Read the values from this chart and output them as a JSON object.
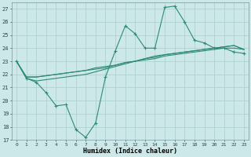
{
  "xlabel": "Humidex (Indice chaleur)",
  "ylabel": "",
  "x_values": [
    0,
    1,
    2,
    3,
    4,
    5,
    6,
    7,
    8,
    9,
    10,
    11,
    12,
    13,
    14,
    15,
    16,
    17,
    18,
    19,
    20,
    21,
    22,
    23
  ],
  "line1_y": [
    23.0,
    21.7,
    21.4,
    20.6,
    19.6,
    19.7,
    17.8,
    17.2,
    18.3,
    21.8,
    23.8,
    25.7,
    25.1,
    24.0,
    24.0,
    27.1,
    27.2,
    26.0,
    24.6,
    24.4,
    24.0,
    24.0,
    23.7,
    23.6
  ],
  "line2_y": [
    23.0,
    21.8,
    21.8,
    21.9,
    22.0,
    22.1,
    22.2,
    22.3,
    22.4,
    22.5,
    22.7,
    22.9,
    23.0,
    23.1,
    23.2,
    23.4,
    23.5,
    23.6,
    23.7,
    23.8,
    23.9,
    24.0,
    24.0,
    23.9
  ],
  "line3_y": [
    23.0,
    21.8,
    21.8,
    21.9,
    22.0,
    22.1,
    22.2,
    22.3,
    22.5,
    22.6,
    22.7,
    22.9,
    23.0,
    23.2,
    23.3,
    23.5,
    23.6,
    23.7,
    23.8,
    23.9,
    24.0,
    24.1,
    24.2,
    23.9
  ],
  "line4_y": [
    23.0,
    21.7,
    21.5,
    21.6,
    21.7,
    21.8,
    21.9,
    22.0,
    22.2,
    22.4,
    22.6,
    22.8,
    23.0,
    23.2,
    23.4,
    23.5,
    23.6,
    23.7,
    23.8,
    23.9,
    24.0,
    24.1,
    24.2,
    23.9
  ],
  "line_color": "#2e8b74",
  "bg_color": "#cce8e8",
  "grid_color": "#aacece",
  "ylim": [
    17,
    27.5
  ],
  "xlim": [
    -0.5,
    23.5
  ],
  "yticks": [
    17,
    18,
    19,
    20,
    21,
    22,
    23,
    24,
    25,
    26,
    27
  ],
  "xticks": [
    0,
    1,
    2,
    3,
    4,
    5,
    6,
    7,
    8,
    9,
    10,
    11,
    12,
    13,
    14,
    15,
    16,
    17,
    18,
    19,
    20,
    21,
    22,
    23
  ],
  "marker_size": 3,
  "line_width": 0.8
}
